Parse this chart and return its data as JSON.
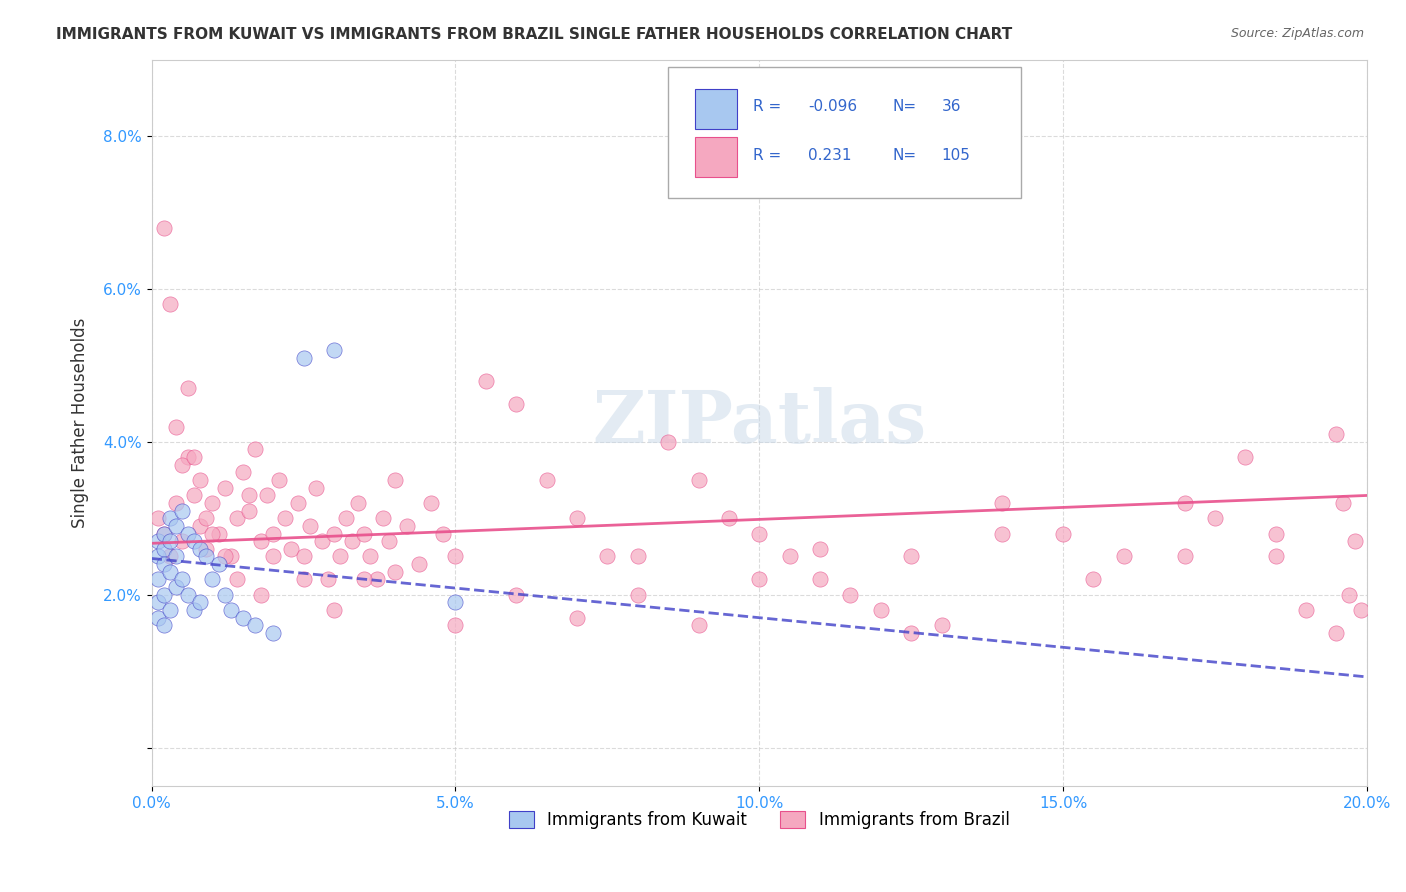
{
  "title": "IMMIGRANTS FROM KUWAIT VS IMMIGRANTS FROM BRAZIL SINGLE FATHER HOUSEHOLDS CORRELATION CHART",
  "source": "Source: ZipAtlas.com",
  "xlabel_bottom": "",
  "ylabel": "Single Father Households",
  "xlim": [
    0.0,
    0.2
  ],
  "ylim": [
    -0.005,
    0.09
  ],
  "xticks": [
    0.0,
    0.05,
    0.1,
    0.15,
    0.2
  ],
  "xtick_labels": [
    "0.0%",
    "5.0%",
    "10.0%",
    "15.0%",
    "20.0%"
  ],
  "yticks": [
    0.0,
    0.02,
    0.04,
    0.06,
    0.08
  ],
  "ytick_labels": [
    "",
    "2.0%",
    "4.0%",
    "6.0%",
    "8.0%"
  ],
  "kuwait_R": -0.096,
  "kuwait_N": 36,
  "brazil_R": 0.231,
  "brazil_N": 105,
  "kuwait_color": "#a8c8f0",
  "brazil_color": "#f5a8c0",
  "kuwait_line_color": "#4040c8",
  "brazil_line_color": "#e8508c",
  "kuwait_x": [
    0.001,
    0.001,
    0.001,
    0.001,
    0.001,
    0.002,
    0.002,
    0.002,
    0.002,
    0.002,
    0.003,
    0.003,
    0.003,
    0.003,
    0.004,
    0.004,
    0.004,
    0.005,
    0.005,
    0.006,
    0.006,
    0.007,
    0.007,
    0.008,
    0.008,
    0.009,
    0.01,
    0.011,
    0.012,
    0.013,
    0.015,
    0.017,
    0.02,
    0.025,
    0.03,
    0.05
  ],
  "kuwait_y": [
    0.027,
    0.025,
    0.022,
    0.019,
    0.017,
    0.028,
    0.026,
    0.024,
    0.02,
    0.016,
    0.03,
    0.027,
    0.023,
    0.018,
    0.029,
    0.025,
    0.021,
    0.031,
    0.022,
    0.028,
    0.02,
    0.027,
    0.018,
    0.026,
    0.019,
    0.025,
    0.022,
    0.024,
    0.02,
    0.018,
    0.017,
    0.016,
    0.015,
    0.051,
    0.052,
    0.019
  ],
  "brazil_x": [
    0.001,
    0.002,
    0.003,
    0.004,
    0.005,
    0.006,
    0.007,
    0.008,
    0.009,
    0.01,
    0.011,
    0.012,
    0.013,
    0.014,
    0.015,
    0.016,
    0.017,
    0.018,
    0.019,
    0.02,
    0.021,
    0.022,
    0.023,
    0.024,
    0.025,
    0.026,
    0.027,
    0.028,
    0.029,
    0.03,
    0.031,
    0.032,
    0.033,
    0.034,
    0.035,
    0.036,
    0.037,
    0.038,
    0.039,
    0.04,
    0.042,
    0.044,
    0.046,
    0.048,
    0.05,
    0.055,
    0.06,
    0.065,
    0.07,
    0.075,
    0.08,
    0.085,
    0.09,
    0.095,
    0.1,
    0.105,
    0.11,
    0.115,
    0.12,
    0.125,
    0.13,
    0.14,
    0.15,
    0.16,
    0.17,
    0.175,
    0.18,
    0.185,
    0.19,
    0.195,
    0.002,
    0.003,
    0.004,
    0.005,
    0.006,
    0.007,
    0.008,
    0.009,
    0.01,
    0.012,
    0.014,
    0.016,
    0.018,
    0.02,
    0.025,
    0.03,
    0.035,
    0.04,
    0.05,
    0.06,
    0.07,
    0.08,
    0.09,
    0.1,
    0.11,
    0.125,
    0.14,
    0.155,
    0.17,
    0.185,
    0.195,
    0.197,
    0.199,
    0.198,
    0.196
  ],
  "brazil_y": [
    0.03,
    0.028,
    0.025,
    0.032,
    0.027,
    0.038,
    0.033,
    0.029,
    0.026,
    0.032,
    0.028,
    0.034,
    0.025,
    0.03,
    0.036,
    0.031,
    0.039,
    0.027,
    0.033,
    0.028,
    0.035,
    0.03,
    0.026,
    0.032,
    0.025,
    0.029,
    0.034,
    0.027,
    0.022,
    0.028,
    0.025,
    0.03,
    0.027,
    0.032,
    0.028,
    0.025,
    0.022,
    0.03,
    0.027,
    0.035,
    0.029,
    0.024,
    0.032,
    0.028,
    0.025,
    0.048,
    0.045,
    0.035,
    0.03,
    0.025,
    0.02,
    0.04,
    0.035,
    0.03,
    0.028,
    0.025,
    0.022,
    0.02,
    0.018,
    0.015,
    0.016,
    0.032,
    0.028,
    0.025,
    0.032,
    0.03,
    0.038,
    0.025,
    0.018,
    0.015,
    0.068,
    0.058,
    0.042,
    0.037,
    0.047,
    0.038,
    0.035,
    0.03,
    0.028,
    0.025,
    0.022,
    0.033,
    0.02,
    0.025,
    0.022,
    0.018,
    0.022,
    0.023,
    0.016,
    0.02,
    0.017,
    0.025,
    0.016,
    0.022,
    0.026,
    0.025,
    0.028,
    0.022,
    0.025,
    0.028,
    0.041,
    0.02,
    0.018,
    0.027,
    0.032
  ],
  "watermark": "ZIPatlas",
  "legend_entries": [
    "Immigrants from Kuwait",
    "Immigrants from Brazil"
  ]
}
